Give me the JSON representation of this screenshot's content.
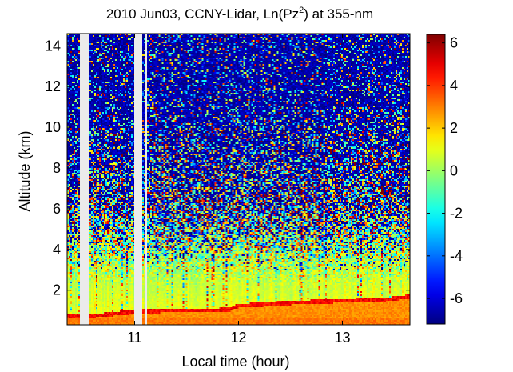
{
  "chart_data": {
    "type": "heatmap",
    "title_parts": [
      "2010 Jun03, CCNY-Lidar, Ln(Pz",
      "2",
      ") at 355-nm"
    ],
    "xlabel": "Local time (hour)",
    "ylabel": "Altitude (km)",
    "xlim": [
      10.35,
      13.65
    ],
    "ylim": [
      0.3,
      14.6
    ],
    "xticks": [
      11,
      12,
      13
    ],
    "yticks": [
      2,
      4,
      6,
      8,
      10,
      12,
      14
    ],
    "colorbar": {
      "range": [
        -7.2,
        6.4
      ],
      "ticks": [
        -6,
        -4,
        -2,
        0,
        2,
        4,
        6
      ],
      "colormap": "jet"
    },
    "data_gaps_hours": [
      [
        10.47,
        10.57
      ],
      [
        10.99,
        11.07
      ],
      [
        11.1,
        11.12
      ]
    ],
    "features": {
      "boundary_layer_top_km": {
        "hours": [
          10.57,
          11.0,
          11.1,
          11.9,
          12.0,
          12.5,
          13.0,
          13.4,
          13.65
        ],
        "values": [
          0.75,
          0.95,
          1.0,
          1.05,
          1.25,
          1.4,
          1.5,
          1.55,
          1.7
        ]
      },
      "boundary_layer_value": 2.8,
      "noise_onset_km": 4.5
    }
  }
}
